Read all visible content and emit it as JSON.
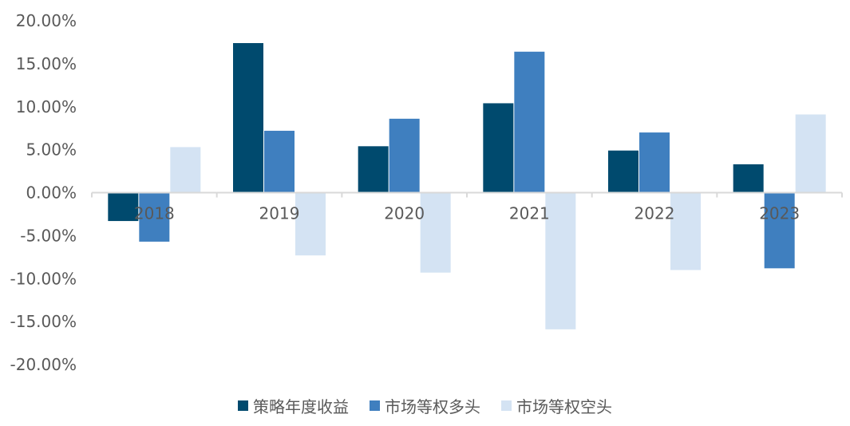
{
  "chart_data": {
    "type": "bar",
    "categories": [
      "2018",
      "2019",
      "2020",
      "2021",
      "2022",
      "2023"
    ],
    "series": [
      {
        "name": "策略年度收益",
        "color": "#004a6e",
        "values": [
          -3.3,
          17.4,
          5.4,
          10.4,
          4.9,
          3.3
        ]
      },
      {
        "name": "市场等权多头",
        "color": "#3f7fbf",
        "values": [
          -5.7,
          7.2,
          8.6,
          16.4,
          7.0,
          -8.8
        ]
      },
      {
        "name": "市场等权空头",
        "color": "#d4e3f3",
        "values": [
          5.3,
          -7.3,
          -9.3,
          -15.9,
          -9.0,
          9.1
        ]
      }
    ],
    "y_ticks": [
      "20.00%",
      "15.00%",
      "10.00%",
      "5.00%",
      "0.00%",
      "-5.00%",
      "-10.00%",
      "-15.00%",
      "-20.00%"
    ],
    "ylim": [
      -20,
      20
    ],
    "grid": false,
    "legend_position": "bottom"
  }
}
